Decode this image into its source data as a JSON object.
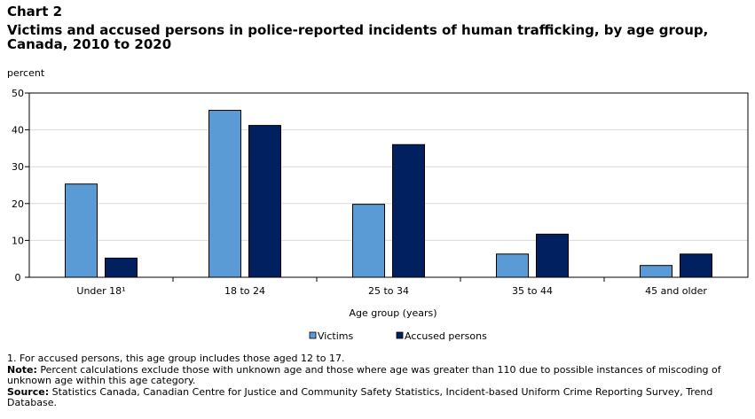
{
  "header": {
    "label": "Chart 2",
    "title": "Victims and accused persons in police-reported incidents of human trafficking, by age group, Canada, 2010 to 2020"
  },
  "chart_data": {
    "type": "bar",
    "ylabel": "percent",
    "xlabel": "Age group (years)",
    "ylim": [
      0,
      50
    ],
    "yticks": [
      0,
      10,
      20,
      30,
      40,
      50
    ],
    "grid": true,
    "legend_position": "bottom",
    "categories": [
      "Under 18¹",
      "18 to 24",
      "25 to 34",
      "35 to 44",
      "45 and older"
    ],
    "series": [
      {
        "name": "Victims",
        "color": "#5b9bd5",
        "values": [
          25.3,
          45.3,
          19.8,
          6.3,
          3.2
        ]
      },
      {
        "name": "Accused persons",
        "color": "#002060",
        "values": [
          5.2,
          41.2,
          36.0,
          11.7,
          6.3
        ]
      }
    ]
  },
  "notes": {
    "footnote": "1. For accused persons, this age group includes those aged 12 to 17.",
    "note_label": "Note:",
    "note_text": "Percent calculations exclude those with unknown age and those where age was greater than 110 due to possible instances of miscoding of unknown age within this age category.",
    "source_label": "Source:",
    "source_text": "Statistics Canada, Canadian Centre for Justice and Community Safety Statistics, Incident-based Uniform Crime Reporting Survey, Trend Database."
  }
}
